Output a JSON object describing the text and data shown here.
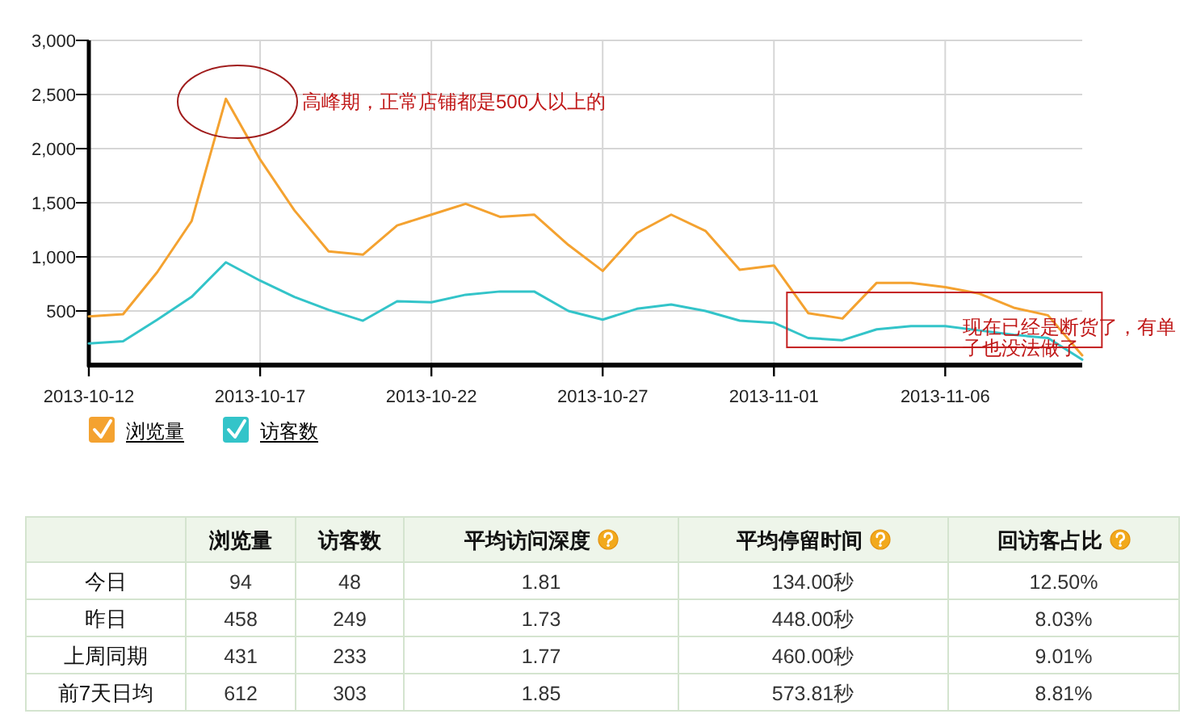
{
  "chart_data": [
    {
      "type": "line",
      "x": [
        "2013-10-12",
        "2013-10-13",
        "2013-10-14",
        "2013-10-15",
        "2013-10-16",
        "2013-10-17",
        "2013-10-18",
        "2013-10-19",
        "2013-10-20",
        "2013-10-21",
        "2013-10-22",
        "2013-10-23",
        "2013-10-24",
        "2013-10-25",
        "2013-10-26",
        "2013-10-27",
        "2013-10-28",
        "2013-10-29",
        "2013-10-30",
        "2013-10-31",
        "2013-11-01",
        "2013-11-02",
        "2013-11-03",
        "2013-11-04",
        "2013-11-05",
        "2013-11-06",
        "2013-11-07",
        "2013-11-08",
        "2013-11-09",
        "2013-11-10"
      ],
      "series": [
        {
          "name": "浏览量",
          "color": "#f4a230",
          "values": [
            450,
            470,
            860,
            1330,
            2460,
            1900,
            1430,
            1050,
            1020,
            1290,
            1390,
            1490,
            1370,
            1390,
            1110,
            870,
            1220,
            1390,
            1240,
            880,
            920,
            480,
            430,
            760,
            760,
            720,
            660,
            530,
            460,
            90
          ]
        },
        {
          "name": "访客数",
          "color": "#33c4c9",
          "values": [
            200,
            220,
            420,
            630,
            950,
            780,
            630,
            510,
            410,
            590,
            580,
            650,
            680,
            680,
            500,
            420,
            520,
            560,
            500,
            410,
            390,
            250,
            230,
            330,
            360,
            360,
            320,
            280,
            250,
            50
          ]
        }
      ],
      "xlim": [
        "2013-10-12",
        "2013-11-10"
      ],
      "xticks": [
        "2013-10-12",
        "2013-10-17",
        "2013-10-22",
        "2013-10-27",
        "2013-11-01",
        "2013-11-06"
      ],
      "ylim": [
        0,
        3000
      ],
      "yticks": [
        500,
        {
          "value": 1000,
          "label": "1,000"
        },
        {
          "value": 1500,
          "label": "1,500"
        },
        {
          "value": 2000,
          "label": "2,000"
        },
        {
          "value": 2500,
          "label": "2,500"
        },
        {
          "value": 3000,
          "label": "3,000"
        }
      ],
      "grid": true,
      "legend": "bottom",
      "annotations": [
        "高峰期，正常店铺都是500人以上的",
        {
          "text": "现在已经是断货了，有单子也没法做了",
          "x": "2013-11-06",
          "y": 410
        }
      ]
    },
    {
      "type": "other",
      "categories": [
        "浏览量",
        "访客数",
        "平均访问深度",
        "平均停留时间",
        "回访客占比"
      ],
      "y_categories": [
        "今日",
        "昨日",
        "上周同期",
        "前7天日均"
      ],
      "cell_labels": [
        [
          "94",
          "48",
          "1.81",
          "134.00秒",
          "12.50%"
        ],
        [
          "458",
          "249",
          "1.73",
          "448.00秒",
          "8.03%"
        ],
        [
          "431",
          "233",
          "1.77",
          "460.00秒",
          "9.01%"
        ],
        [
          "612",
          "303",
          "1.85",
          "573.81秒",
          "8.81%"
        ]
      ]
    }
  ]
}
